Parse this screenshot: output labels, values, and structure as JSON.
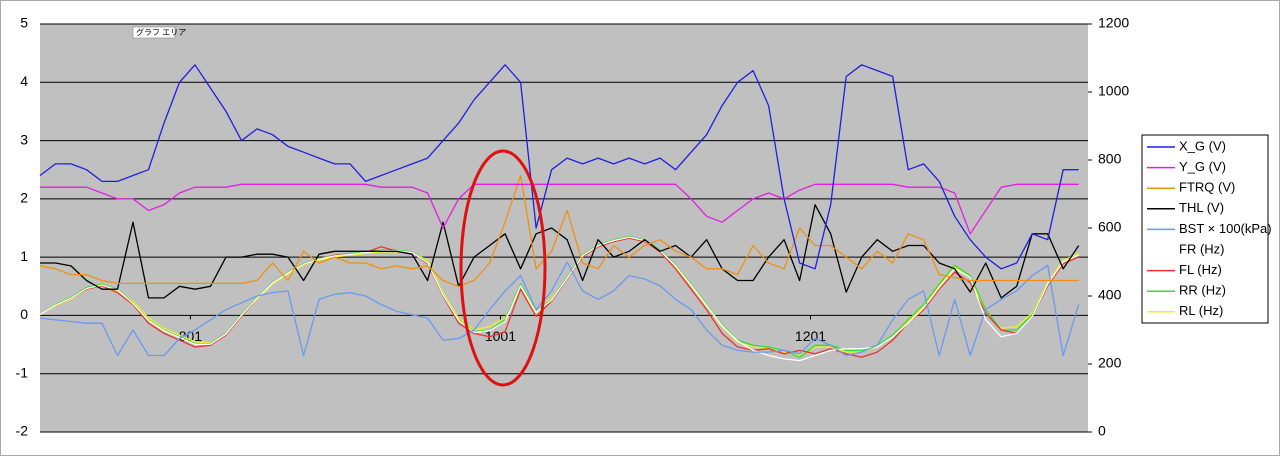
{
  "chart_data": {
    "type": "line",
    "annotation": "グラフ エリア",
    "x": [
      704,
      714,
      724,
      734,
      744,
      754,
      764,
      774,
      784,
      794,
      804,
      814,
      824,
      834,
      844,
      854,
      864,
      874,
      884,
      894,
      904,
      914,
      924,
      934,
      944,
      954,
      964,
      974,
      984,
      994,
      1004,
      1014,
      1024,
      1034,
      1044,
      1054,
      1064,
      1074,
      1084,
      1094,
      1104,
      1114,
      1124,
      1134,
      1144,
      1154,
      1164,
      1174,
      1184,
      1194,
      1204,
      1214,
      1224,
      1234,
      1244,
      1254,
      1264,
      1274,
      1284,
      1294,
      1304,
      1314,
      1324,
      1334,
      1344,
      1354,
      1364,
      1374
    ],
    "xlim": [
      704,
      1380
    ],
    "xticks": [
      801,
      1001,
      1201
    ],
    "ylim": [
      -2,
      5
    ],
    "yticks": [
      -2,
      -1,
      0,
      1,
      2,
      3,
      4,
      5
    ],
    "y2lim": [
      0,
      1200
    ],
    "y2ticks": [
      0,
      200,
      400,
      600,
      800,
      1000,
      1200
    ],
    "grid": true,
    "legend_position": "right",
    "series": [
      {
        "name": "X_G (V)",
        "color": "#1f1fe0",
        "values": [
          2.4,
          2.6,
          2.6,
          2.5,
          2.3,
          2.3,
          2.4,
          2.5,
          3.3,
          4.0,
          4.3,
          3.9,
          3.5,
          3.0,
          3.2,
          3.1,
          2.9,
          2.8,
          2.7,
          2.6,
          2.6,
          2.3,
          2.4,
          2.5,
          2.6,
          2.7,
          3.0,
          3.3,
          3.7,
          4.0,
          4.3,
          4.0,
          1.5,
          2.5,
          2.7,
          2.6,
          2.7,
          2.6,
          2.7,
          2.6,
          2.7,
          2.5,
          2.8,
          3.1,
          3.6,
          4.0,
          4.2,
          3.6,
          2.0,
          0.9,
          0.8,
          1.9,
          4.1,
          4.3,
          4.2,
          4.1,
          2.5,
          2.6,
          2.3,
          1.7,
          1.3,
          1.0,
          0.8,
          0.9,
          1.4,
          1.3,
          2.5,
          2.5
        ]
      },
      {
        "name": "Y_G (V)",
        "color": "#e020e0",
        "values": [
          2.2,
          2.2,
          2.2,
          2.2,
          2.1,
          2.0,
          2.0,
          1.8,
          1.9,
          2.1,
          2.2,
          2.2,
          2.2,
          2.25,
          2.25,
          2.25,
          2.25,
          2.25,
          2.25,
          2.25,
          2.25,
          2.25,
          2.2,
          2.2,
          2.2,
          2.1,
          1.5,
          2.0,
          2.25,
          2.25,
          2.25,
          2.25,
          2.25,
          2.25,
          2.25,
          2.25,
          2.25,
          2.25,
          2.25,
          2.25,
          2.25,
          2.25,
          2.0,
          1.7,
          1.6,
          1.8,
          2.0,
          2.1,
          2.0,
          2.15,
          2.25,
          2.25,
          2.25,
          2.25,
          2.25,
          2.25,
          2.2,
          2.2,
          2.2,
          2.1,
          1.4,
          1.8,
          2.2,
          2.25,
          2.25,
          2.25,
          2.25,
          2.25
        ]
      },
      {
        "name": "FTRQ (V)",
        "color": "#f09010",
        "values": [
          0.85,
          0.8,
          0.7,
          0.7,
          0.6,
          0.55,
          0.55,
          0.55,
          0.55,
          0.55,
          0.55,
          0.55,
          0.55,
          0.55,
          0.6,
          0.9,
          0.6,
          1.1,
          0.9,
          1.0,
          0.9,
          0.9,
          0.8,
          0.85,
          0.8,
          0.85,
          0.6,
          0.5,
          0.6,
          0.9,
          1.6,
          2.4,
          0.8,
          1.1,
          1.8,
          0.9,
          0.8,
          1.2,
          1.0,
          1.2,
          1.3,
          1.1,
          1.0,
          0.8,
          0.8,
          0.7,
          1.2,
          0.9,
          0.8,
          1.5,
          1.2,
          1.2,
          1.0,
          0.8,
          1.1,
          0.9,
          1.4,
          1.3,
          0.7,
          0.65,
          0.6,
          0.6,
          0.6,
          0.6,
          0.6,
          0.6,
          0.6,
          0.6
        ]
      },
      {
        "name": "THL (V)",
        "color": "#000000",
        "values": [
          0.9,
          0.9,
          0.85,
          0.6,
          0.45,
          0.45,
          1.6,
          0.3,
          0.3,
          0.5,
          0.45,
          0.5,
          1.0,
          1.0,
          1.05,
          1.05,
          1.0,
          0.6,
          1.05,
          1.1,
          1.1,
          1.1,
          1.1,
          1.1,
          1.05,
          0.6,
          1.6,
          0.5,
          1.0,
          1.2,
          1.4,
          0.8,
          1.4,
          1.5,
          1.3,
          0.6,
          1.3,
          1.0,
          1.1,
          1.3,
          1.1,
          1.2,
          1.0,
          1.3,
          0.8,
          0.6,
          0.6,
          1.0,
          1.3,
          0.6,
          1.9,
          1.4,
          0.4,
          1.0,
          1.3,
          1.1,
          1.2,
          1.2,
          0.9,
          0.8,
          0.4,
          0.9,
          0.3,
          0.5,
          1.4,
          1.4,
          0.8,
          1.2
        ]
      },
      {
        "name": "BST × 100(kPa)",
        "color": "#6a9af0",
        "axis": "y2",
        "values": [
          335,
          330,
          325,
          320,
          320,
          225,
          300,
          225,
          225,
          275,
          300,
          330,
          360,
          380,
          400,
          410,
          415,
          225,
          390,
          405,
          410,
          400,
          375,
          355,
          345,
          335,
          270,
          275,
          300,
          360,
          415,
          460,
          360,
          415,
          500,
          415,
          390,
          415,
          460,
          450,
          430,
          390,
          360,
          300,
          255,
          240,
          235,
          235,
          240,
          230,
          275,
          255,
          225,
          235,
          255,
          330,
          390,
          415,
          225,
          390,
          225,
          360,
          390,
          415,
          460,
          490,
          225,
          375
        ]
      },
      {
        "name": "FR (Hz)",
        "color": "#ffffff",
        "axis": "y2",
        "values": [
          345,
          373,
          393,
          422,
          432,
          418,
          378,
          328,
          298,
          278,
          258,
          258,
          288,
          343,
          393,
          438,
          468,
          493,
          508,
          518,
          522,
          528,
          533,
          533,
          528,
          498,
          403,
          328,
          293,
          298,
          325,
          430,
          352,
          388,
          452,
          518,
          548,
          563,
          573,
          563,
          533,
          488,
          432,
          372,
          312,
          268,
          240,
          225,
          215,
          210,
          225,
          240,
          245,
          245,
          250,
          280,
          320,
          365,
          425,
          480,
          455,
          330,
          280,
          290,
          340,
          435,
          500,
          520
        ]
      },
      {
        "name": "FL (Hz)",
        "color": "#f03030",
        "axis": "y2",
        "values": [
          345,
          372,
          392,
          420,
          430,
          410,
          375,
          320,
          290,
          270,
          250,
          255,
          285,
          340,
          392,
          438,
          468,
          492,
          508,
          520,
          522,
          528,
          545,
          532,
          528,
          495,
          400,
          320,
          290,
          280,
          295,
          420,
          340,
          385,
          450,
          515,
          545,
          560,
          570,
          560,
          530,
          480,
          420,
          360,
          290,
          250,
          240,
          245,
          230,
          240,
          230,
          245,
          230,
          220,
          235,
          270,
          320,
          360,
          420,
          470,
          440,
          350,
          300,
          290,
          340,
          430,
          495,
          515
        ]
      },
      {
        "name": "RR (Hz)",
        "color": "#30e030",
        "axis": "y2",
        "values": [
          345,
          375,
          395,
          425,
          435,
          420,
          380,
          330,
          300,
          280,
          260,
          260,
          290,
          345,
          395,
          440,
          470,
          495,
          510,
          520,
          525,
          530,
          535,
          535,
          530,
          500,
          405,
          330,
          295,
          300,
          330,
          435,
          355,
          390,
          455,
          520,
          550,
          565,
          575,
          565,
          535,
          490,
          435,
          375,
          315,
          270,
          255,
          250,
          240,
          220,
          255,
          255,
          240,
          240,
          255,
          285,
          330,
          375,
          435,
          490,
          460,
          360,
          300,
          300,
          345,
          435,
          500,
          520
        ]
      },
      {
        "name": "RL (Hz)",
        "color": "#f0f020",
        "axis": "y2",
        "values": [
          345,
          370,
          390,
          420,
          430,
          415,
          385,
          335,
          305,
          285,
          265,
          262,
          288,
          340,
          390,
          435,
          465,
          490,
          505,
          515,
          520,
          525,
          530,
          530,
          528,
          505,
          410,
          335,
          300,
          310,
          335,
          420,
          350,
          395,
          450,
          515,
          545,
          560,
          570,
          560,
          530,
          485,
          430,
          370,
          310,
          265,
          250,
          245,
          235,
          225,
          250,
          250,
          235,
          235,
          250,
          280,
          325,
          370,
          430,
          485,
          455,
          350,
          305,
          310,
          350,
          440,
          505,
          525
        ]
      }
    ]
  }
}
